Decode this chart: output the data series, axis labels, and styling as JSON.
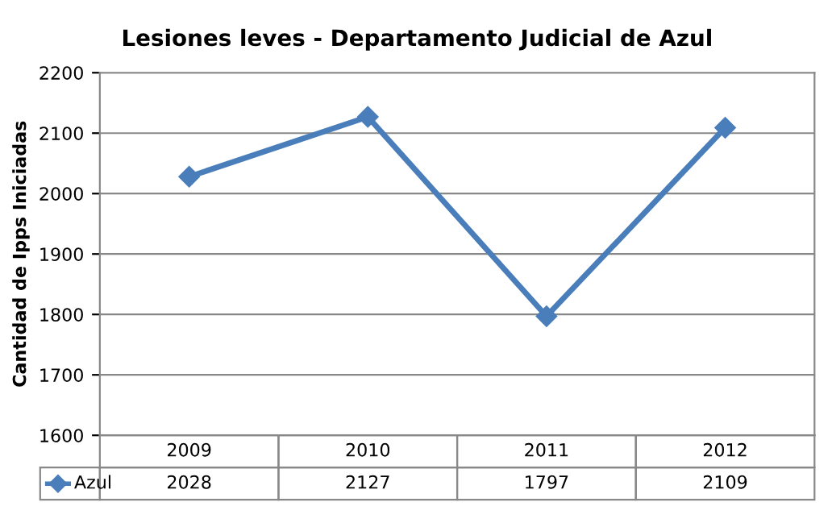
{
  "chart_data": {
    "type": "line",
    "title": "Lesiones leves - Departamento Judicial de Azul",
    "ylabel": "Cantidad de Ipps Iniciadas",
    "categories": [
      "2009",
      "2010",
      "2011",
      "2012"
    ],
    "series": [
      {
        "name": "Azul",
        "color": "#4a7ebb",
        "values": [
          2028,
          2127,
          1797,
          2109
        ]
      }
    ],
    "ylim": [
      1600,
      2200
    ],
    "yticks": [
      1600,
      1700,
      1800,
      1900,
      2000,
      2100,
      2200
    ],
    "grid": "y",
    "marker": "diamond",
    "line_style": "solid",
    "legend": "bottom",
    "data_labels": true
  }
}
